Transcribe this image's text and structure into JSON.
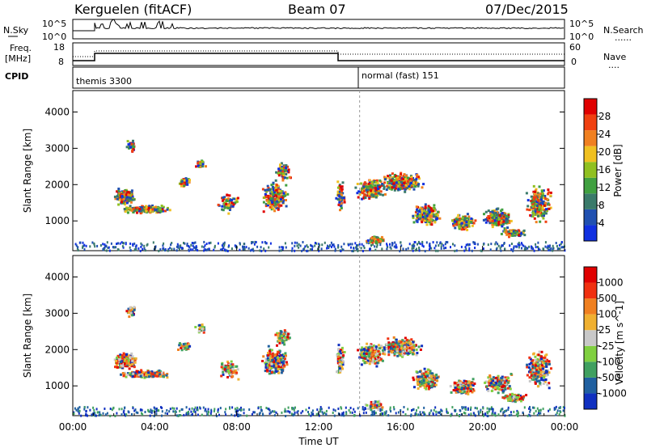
{
  "header": {
    "station": "Kerguelen (fitACF)",
    "beam": "Beam 07",
    "date": "07/Dec/2015"
  },
  "panels": {
    "nsky": {
      "left_label": "N.Sky",
      "left_ticks": [
        "10^5",
        "10^0"
      ],
      "right_ticks": [
        "10^5",
        "10^0"
      ],
      "right_label": "N.Search",
      "right_legend": "......"
    },
    "freq": {
      "left_label_1": "Freq.",
      "left_label_2": "[MHz]",
      "left_ticks": [
        "18",
        "8"
      ],
      "right_ticks": [
        "60",
        "0"
      ],
      "right_label": "Nave",
      "right_legend": "...."
    },
    "cpid": {
      "label": "CPID",
      "modes": [
        {
          "name": "themis 3300",
          "start_hour": 0
        },
        {
          "name": "normal (fast) 151",
          "start_hour": 14
        }
      ]
    }
  },
  "chart_data": [
    {
      "type": "heatmap",
      "name": "power",
      "ylabel": "Slant Range [km]",
      "yticks": [
        "4000",
        "3000",
        "2000",
        "1000"
      ],
      "ytick_values": [
        4000,
        3000,
        2000,
        1000
      ],
      "ylim": [
        180,
        4590
      ],
      "colorbar_label": "Power [dB]",
      "colorbar_ticks": [
        "28",
        "24",
        "20",
        "16",
        "12",
        "8",
        "4"
      ],
      "colors": [
        "#1030e0",
        "#2050b0",
        "#3a7a6a",
        "#40a040",
        "#90c020",
        "#f0c020",
        "#f08020",
        "#f04010",
        "#e00000"
      ]
    },
    {
      "type": "heatmap",
      "name": "velocity",
      "ylabel": "Slant Range [km]",
      "yticks": [
        "4000",
        "3000",
        "2000",
        "1000"
      ],
      "ytick_values": [
        4000,
        3000,
        2000,
        1000
      ],
      "ylim": [
        180,
        4590
      ],
      "colorbar_label": "Velocity [m s^-1]",
      "colorbar_ticks": [
        "1000",
        "500",
        "100",
        "25",
        "-25",
        "-100",
        "-500",
        "-1000"
      ],
      "colors": [
        "#1030c0",
        "#2060a0",
        "#40a060",
        "#80d040",
        "#c8c8c8",
        "#f0b030",
        "#f08020",
        "#f03010",
        "#e00000"
      ],
      "xlabel": "Time UT",
      "xticks": [
        "00:00",
        "04:00",
        "08:00",
        "12:00",
        "16:00",
        "20:00",
        "00:00"
      ]
    }
  ]
}
